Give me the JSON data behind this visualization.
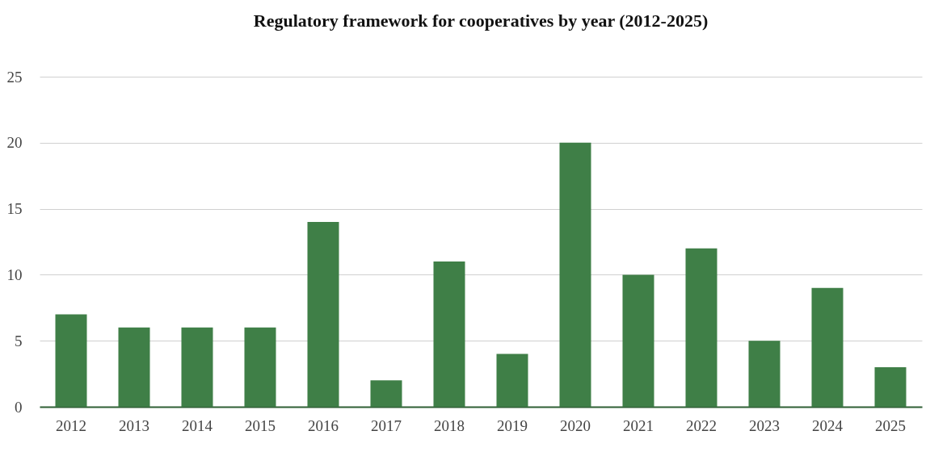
{
  "chart_data": {
    "type": "bar",
    "title": "Regulatory framework for cooperatives by year (2012-2025)",
    "categories": [
      "2012",
      "2013",
      "2014",
      "2015",
      "2016",
      "2017",
      "2018",
      "2019",
      "2020",
      "2021",
      "2022",
      "2023",
      "2024",
      "2025"
    ],
    "values": [
      7,
      6,
      6,
      6,
      14,
      2,
      11,
      4,
      20,
      10,
      12,
      5,
      9,
      3
    ],
    "color": "#3f7f47",
    "ylim": [
      0,
      25
    ],
    "yticks": [
      0,
      5,
      10,
      15,
      20,
      25
    ],
    "grid": "y"
  }
}
